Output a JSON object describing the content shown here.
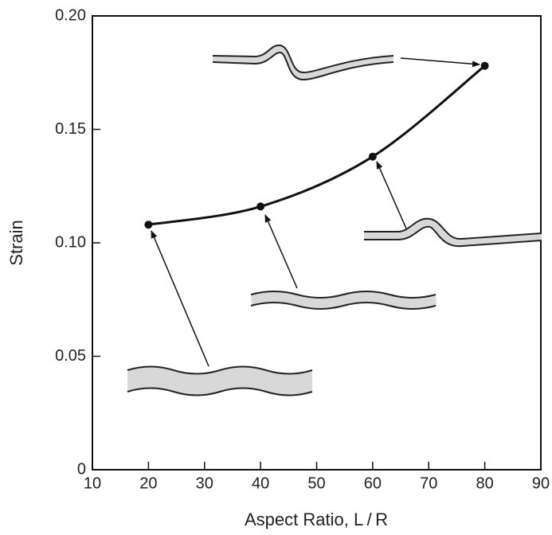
{
  "chart_data": {
    "type": "line",
    "x_label": "Aspect Ratio, L / R",
    "y_label": "Strain",
    "x": [
      20,
      40,
      60,
      80
    ],
    "series": [
      {
        "color": "#111111",
        "values": [
          0.108,
          0.116,
          0.138,
          0.178
        ]
      }
    ],
    "xlim": [
      10,
      90
    ],
    "xticks": [
      10,
      20,
      30,
      40,
      50,
      60,
      70,
      80,
      90
    ],
    "ylim": [
      0,
      0.2
    ],
    "yticks": [
      0,
      0.05,
      {
        "value": 0.1,
        "label": "0.10"
      },
      0.15,
      {
        "value": 0.2,
        "label": "0.20"
      }
    ]
  }
}
